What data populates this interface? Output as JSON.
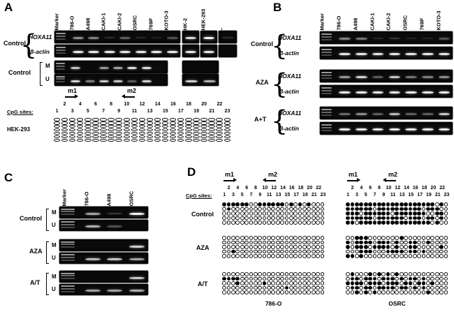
{
  "decor": {
    "curly": "{"
  },
  "colors": {
    "gel_background": "#0b0b0b",
    "band": "#f0f0f0",
    "methylated": "#000000",
    "unmethylated": "#ffffff"
  },
  "panel_a": {
    "label": "A",
    "lanes": [
      "Marker",
      "786-O",
      "A498",
      "CAKI-1",
      "CAKI-2",
      "OSRC",
      "769P",
      "KOTO-3"
    ],
    "extra_lanes": [
      "HK-2",
      "HEK-293",
      "–"
    ],
    "rt_group": "Control",
    "msp_group": "Control",
    "genes": [
      "HOXA11",
      "β-actin"
    ],
    "msp_rows": [
      "M",
      "U"
    ],
    "gels": {
      "hoxa11_main": {
        "marker": true,
        "bands": [
          0.55,
          0.5,
          0.15,
          0.35,
          0.12,
          0.1,
          0.3
        ]
      },
      "hoxa11_hk2": {
        "marker": false,
        "bands": [
          0.9
        ]
      },
      "hoxa11_hek": {
        "marker": false,
        "bands": [
          1.0
        ]
      },
      "hoxa11_neg": {
        "marker": false,
        "bands": [
          0.15
        ]
      },
      "actin_main": {
        "marker": true,
        "bands": [
          0.95,
          0.95,
          0.95,
          0.95,
          0.95,
          0.95,
          0.95
        ]
      },
      "actin_hk2": {
        "marker": false,
        "bands": [
          0.95
        ]
      },
      "actin_hek": {
        "marker": false,
        "bands": [
          0.95
        ]
      },
      "actin_neg": {
        "marker": false,
        "bands": [
          0
        ]
      },
      "m_main": {
        "marker": true,
        "bands": [
          0.8,
          0,
          0.6,
          0.65,
          0.9,
          0.9,
          0
        ]
      },
      "m_right": {
        "marker": false,
        "bands": [
          0,
          0
        ]
      },
      "u_main": {
        "marker": true,
        "bands": [
          0.85,
          0.5,
          0.8,
          0.8,
          0.35,
          0.85,
          0
        ]
      },
      "u_right": {
        "marker": false,
        "bands": [
          0.85,
          0.7
        ]
      }
    },
    "m1": "m1",
    "m2": "m2",
    "cpg_label": "CpG sites:",
    "cpg_even": [
      "2",
      "4",
      "6",
      "8",
      "10",
      "12",
      "14",
      "16",
      "18",
      "20",
      "22"
    ],
    "cpg_odd": [
      "1",
      "3",
      "5",
      "7",
      "9",
      "11",
      "13",
      "15",
      "17",
      "19",
      "21",
      "23"
    ],
    "bis_label": "HEK-293",
    "bis_grid": [
      "00000000000000000000000",
      "00000000000000000000000",
      "00000000000000000000000",
      "00000000000000000000000",
      "00000000000000000000000",
      "00000000000000000000000",
      "00000000000000000000000"
    ]
  },
  "panel_b": {
    "label": "B",
    "lanes": [
      "Marker",
      "786-O",
      "A498",
      "CAKI-1",
      "CAKI-2",
      "OSRC",
      "769P",
      "KOTO-3"
    ],
    "groups": [
      {
        "name": "Control",
        "genes": [
          "HOXA11",
          "β-actin"
        ],
        "gels": {
          "hoxa11": {
            "marker": true,
            "bands": [
              0.5,
              0.45,
              0.12,
              0.2,
              0.1,
              0.1,
              0.3
            ]
          },
          "actin": {
            "marker": true,
            "bands": [
              0.95,
              0.95,
              0.95,
              0.95,
              0.95,
              0.95,
              0.95
            ]
          }
        }
      },
      {
        "name": "AZA",
        "genes": [
          "HOXA11",
          "β-actin"
        ],
        "gels": {
          "hoxa11": {
            "marker": true,
            "bands": [
              0.6,
              0.85,
              0.35,
              0.8,
              0.45,
              0.5,
              0.55
            ]
          },
          "actin": {
            "marker": true,
            "bands": [
              0.95,
              0.95,
              0.95,
              0.95,
              0.95,
              0.95,
              0.95
            ]
          }
        }
      },
      {
        "name": "A+T",
        "genes": [
          "HOXA11",
          "β-actin"
        ],
        "gels": {
          "hoxa11": {
            "marker": true,
            "bands": [
              0.4,
              0.55,
              0.35,
              0.75,
              0.35,
              0.35,
              0.8
            ]
          },
          "actin": {
            "marker": true,
            "bands": [
              0.95,
              0.95,
              0.95,
              0.95,
              0.95,
              0.95,
              0.95
            ]
          }
        }
      }
    ]
  },
  "panel_c": {
    "label": "C",
    "lanes": [
      "Marker",
      "786-O",
      "A498",
      "OSRC"
    ],
    "row_labels": [
      "M",
      "U"
    ],
    "groups": [
      {
        "name": "Control",
        "gels": {
          "m": {
            "marker": true,
            "bands": [
              0.65,
              0.2,
              1.0
            ]
          },
          "u": {
            "marker": true,
            "bands": [
              0.7,
              0.3,
              0
            ]
          }
        }
      },
      {
        "name": "AZA",
        "gels": {
          "m": {
            "marker": true,
            "bands": [
              0,
              0,
              0.85
            ]
          },
          "u": {
            "marker": true,
            "bands": [
              0.75,
              0.8,
              0.65
            ]
          }
        }
      },
      {
        "name": "A/T",
        "gels": {
          "m": {
            "marker": true,
            "bands": [
              0,
              0,
              0.8
            ]
          },
          "u": {
            "marker": true,
            "bands": [
              0.65,
              0.65,
              0.7
            ]
          }
        }
      }
    ]
  },
  "panel_d": {
    "label": "D",
    "m1": "m1",
    "m2": "m2",
    "cpg_label": "CpG sites:",
    "cpg_even": [
      "2",
      "4",
      "6",
      "8",
      "10",
      "12",
      "14",
      "16",
      "18",
      "20",
      "22"
    ],
    "cpg_odd": [
      "1",
      "3",
      "5",
      "7",
      "9",
      "11",
      "13",
      "15",
      "17",
      "19",
      "21",
      "23"
    ],
    "row_labels": [
      "Control",
      "AZA",
      "A/T"
    ],
    "groups": [
      {
        "name": "786-O",
        "control": [
          "11111100111111010101000",
          "01000000000000000000000",
          "00000000000000000000000",
          "00000000000000000000000",
          "00000000000000000000000"
        ],
        "aza": [
          "00000000000000000000000",
          "00000000000000000000000",
          "00000000000000000000000",
          "00100000000000000000000",
          "00000000000000000000000"
        ],
        "at": [
          "00000000000000000000000",
          "11110000000000000000000",
          "00010000010000000000000",
          "00000000000000100000000",
          "00000000000000000000000"
        ]
      },
      {
        "name": "OSRC",
        "control": [
          "11111111111111111111010",
          "11111101111111111011100",
          "11101111110111111100110",
          "11111101111110111011010",
          "11011111111111111110100"
        ],
        "aza": [
          "00111000000010000000000",
          "10111101110100110010000",
          "10111011110100110000010",
          "00011100011110110100000",
          "11010000000000000000000"
        ],
        "at": [
          "01000101010100000000000",
          "01101110111010110100000",
          "11110111011101101101000",
          "01101101111011010100000",
          "00101010000000000010000"
        ]
      }
    ]
  }
}
